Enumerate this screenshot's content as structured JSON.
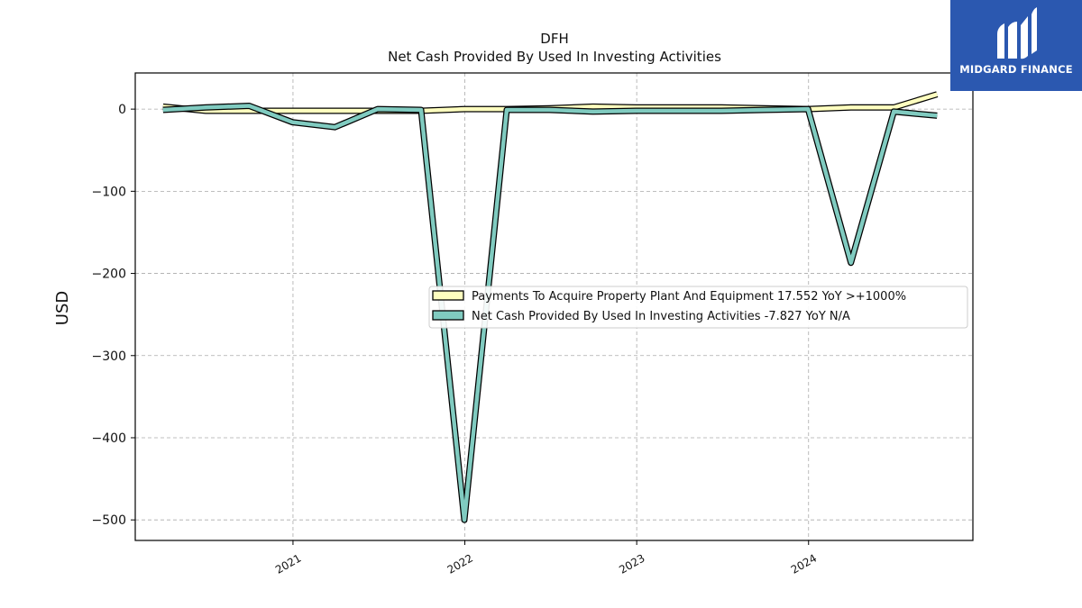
{
  "brand": {
    "name": "MIDGARD FINANCE",
    "color": "#2b58b0"
  },
  "chart_data": {
    "type": "line",
    "title": "DFH",
    "subtitle": "Net Cash Provided By Used In Investing Activities",
    "xlabel": "",
    "ylabel": "USD",
    "ylim": [
      -525,
      44
    ],
    "xlim": [
      "2020-02-01",
      "2024-12-15"
    ],
    "yticks": [
      0,
      -100,
      -200,
      -300,
      -400,
      -500
    ],
    "ytick_labels": [
      "0",
      "−100",
      "−200",
      "−300",
      "−400",
      "−500"
    ],
    "xticks": [
      "2021-01-01",
      "2022-01-01",
      "2023-01-01",
      "2024-01-01"
    ],
    "xtick_labels": [
      "2021",
      "2022",
      "2023",
      "2024"
    ],
    "grid": true,
    "legend_position": "center-right",
    "series": [
      {
        "name": "Payments To Acquire Property Plant And Equipment  17.552 YoY >+1000%",
        "color": "#ffffbf",
        "points": [
          [
            "2020-03-31",
            3
          ],
          [
            "2020-06-30",
            -2
          ],
          [
            "2020-09-30",
            -2
          ],
          [
            "2020-12-31",
            -2
          ],
          [
            "2021-03-31",
            -2
          ],
          [
            "2021-06-30",
            -2
          ],
          [
            "2021-09-30",
            -2
          ],
          [
            "2021-12-31",
            0
          ],
          [
            "2022-03-31",
            0
          ],
          [
            "2022-06-30",
            1
          ],
          [
            "2022-09-30",
            3
          ],
          [
            "2022-12-31",
            2
          ],
          [
            "2023-03-31",
            2
          ],
          [
            "2023-06-30",
            2
          ],
          [
            "2023-09-30",
            1
          ],
          [
            "2023-12-31",
            0
          ],
          [
            "2024-03-31",
            2
          ],
          [
            "2024-06-30",
            2
          ],
          [
            "2024-09-30",
            18
          ]
        ]
      },
      {
        "name": "Net Cash Provided By Used In Investing Activities  -7.827 YoY N/A",
        "color": "#80cbc0",
        "points": [
          [
            "2020-03-31",
            -1
          ],
          [
            "2020-06-30",
            2
          ],
          [
            "2020-09-30",
            4
          ],
          [
            "2020-12-31",
            -16
          ],
          [
            "2021-03-31",
            -22
          ],
          [
            "2021-06-30",
            0
          ],
          [
            "2021-09-30",
            -1
          ],
          [
            "2021-12-31",
            -500
          ],
          [
            "2022-03-31",
            -1
          ],
          [
            "2022-06-30",
            -1
          ],
          [
            "2022-09-30",
            -3
          ],
          [
            "2022-12-31",
            -2
          ],
          [
            "2023-03-31",
            -2
          ],
          [
            "2023-06-30",
            -2
          ],
          [
            "2023-09-30",
            -1
          ],
          [
            "2023-12-31",
            0
          ],
          [
            "2024-03-31",
            -187
          ],
          [
            "2024-06-30",
            -3
          ],
          [
            "2024-09-30",
            -8
          ]
        ]
      }
    ]
  }
}
